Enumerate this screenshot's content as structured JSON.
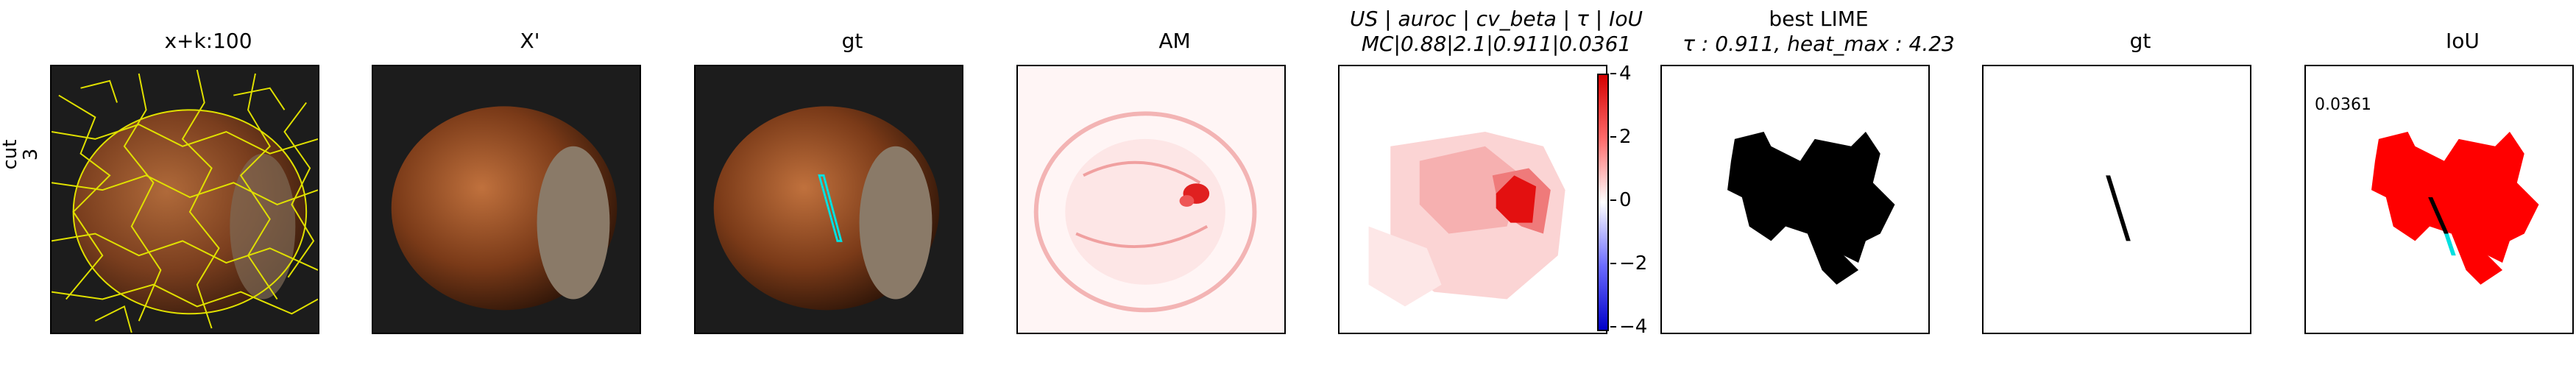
{
  "row_label": {
    "line1": "cut",
    "line2": "3"
  },
  "panels": [
    {
      "title": "x+k:100"
    },
    {
      "title": "X'"
    },
    {
      "title": "gt"
    },
    {
      "title": "AM"
    },
    {
      "title_line1": "US | auroc | cv_beta | τ | IoU",
      "title_line2": "MC|0.88|2.1|0.911|0.0361"
    },
    {
      "title_line1": "best LIME",
      "title_line2": "τ : 0.911, heat_max : 4.23"
    },
    {
      "title": "gt"
    },
    {
      "title": "IoU",
      "iou_value": "0.0361"
    }
  ],
  "colorbar": {
    "ticks": [
      "4",
      "2",
      "0",
      "−2",
      "−4"
    ]
  }
}
